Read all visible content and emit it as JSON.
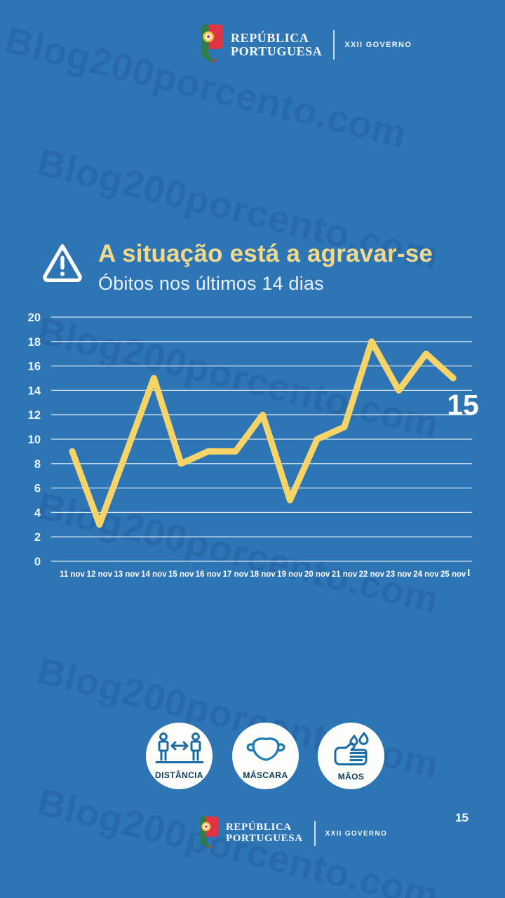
{
  "watermark": {
    "text": "Blog200porcento.com"
  },
  "header": {
    "brand_line1": "REPÚBLICA",
    "brand_line2": "PORTUGUESA",
    "government": "XXII GOVERNO"
  },
  "alert": {
    "title": "A situação está a agravar-se",
    "subtitle": "Óbitos nos últimos 14 dias"
  },
  "chart_data": {
    "type": "line",
    "title": "Óbitos nos últimos 14 dias",
    "categories": [
      "11 nov",
      "12 nov",
      "13 nov",
      "14 nov",
      "15 nov",
      "16 nov",
      "17 nov",
      "18 nov",
      "19 nov",
      "20 nov",
      "21 nov",
      "22 nov",
      "23 nov",
      "24 nov",
      "25 nov"
    ],
    "values": [
      9,
      3,
      9,
      15,
      8,
      9,
      9,
      12,
      5,
      10,
      11,
      18,
      14,
      17,
      15
    ],
    "end_label": "15",
    "xlabel": "",
    "ylabel": "",
    "ylim": [
      0,
      20
    ],
    "ytick_step": 2,
    "grid": true,
    "legend": "none",
    "line_color": "#f7d466",
    "partial_last_tick": "|"
  },
  "prevention": {
    "items": [
      {
        "label": "DISTÂNCIA",
        "icon": "distance-icon"
      },
      {
        "label": "MÁSCARA",
        "icon": "mask-icon"
      },
      {
        "label": "MÃOS",
        "icon": "hands-icon"
      }
    ]
  },
  "footer": {
    "brand_line1": "REPÚBLICA",
    "brand_line2": "PORTUGUESA",
    "government": "XXII GOVERNO",
    "page_number": "15"
  },
  "colors": {
    "background": "#2e75b6",
    "title_yellow": "#f2d98a",
    "line_yellow": "#f7d466",
    "icon_blue": "#1a6ca3",
    "label_navy": "#0d3a5c",
    "flag_red": "#e03445",
    "flag_green": "#2e7d46",
    "flag_gold": "#f2c94c"
  }
}
